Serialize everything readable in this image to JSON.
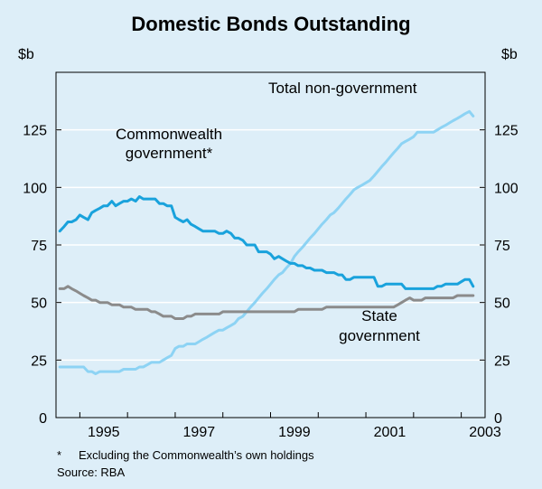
{
  "chart_data": {
    "type": "line",
    "title": "Domestic Bonds Outstanding",
    "ylabel_left": "$b",
    "ylabel_right": "$b",
    "ylim": [
      0,
      150
    ],
    "yticks": [
      0,
      25,
      50,
      75,
      100,
      125
    ],
    "xlim": [
      1994.5,
      2003.5
    ],
    "xticks": [
      "1995",
      "1997",
      "1999",
      "2001",
      "2003"
    ],
    "xtick_values": [
      1995,
      1997,
      1999,
      2001,
      2003
    ],
    "footnote_marker": "*",
    "footnote": "Excluding the Commonwealth’s own holdings",
    "source": "Source: RBA",
    "series": [
      {
        "name": "Commonwealth government*",
        "label_lines": [
          "Commonwealth",
          "government*"
        ],
        "color": "#19a2dc",
        "x": [
          1994.58,
          1994.67,
          1994.75,
          1994.83,
          1994.92,
          1995.0,
          1995.08,
          1995.17,
          1995.25,
          1995.33,
          1995.42,
          1995.5,
          1995.58,
          1995.67,
          1995.75,
          1995.83,
          1995.92,
          1996.0,
          1996.08,
          1996.17,
          1996.25,
          1996.33,
          1996.42,
          1996.5,
          1996.58,
          1996.67,
          1996.75,
          1996.83,
          1996.92,
          1997.0,
          1997.08,
          1997.17,
          1997.25,
          1997.33,
          1997.42,
          1997.5,
          1997.58,
          1997.67,
          1997.75,
          1997.83,
          1997.92,
          1998.0,
          1998.08,
          1998.17,
          1998.25,
          1998.33,
          1998.42,
          1998.5,
          1998.58,
          1998.67,
          1998.75,
          1998.83,
          1998.92,
          1999.0,
          1999.08,
          1999.17,
          1999.25,
          1999.33,
          1999.42,
          1999.5,
          1999.58,
          1999.67,
          1999.75,
          1999.83,
          1999.92,
          2000.0,
          2000.08,
          2000.17,
          2000.25,
          2000.33,
          2000.42,
          2000.5,
          2000.58,
          2000.67,
          2000.75,
          2000.83,
          2000.92,
          2001.0,
          2001.08,
          2001.17,
          2001.25,
          2001.33,
          2001.42,
          2001.5,
          2001.58,
          2001.67,
          2001.75,
          2001.83,
          2001.92,
          2002.0,
          2002.08,
          2002.17,
          2002.25,
          2002.33,
          2002.42,
          2002.5,
          2002.58,
          2002.67,
          2002.75,
          2002.83,
          2002.92,
          2003.0,
          2003.08,
          2003.17,
          2003.25
        ],
        "values": [
          81,
          83,
          85,
          85,
          86,
          88,
          87,
          86,
          89,
          90,
          91,
          92,
          92,
          94,
          92,
          93,
          94,
          94,
          95,
          94,
          96,
          95,
          95,
          95,
          95,
          93,
          93,
          92,
          92,
          87,
          86,
          85,
          86,
          84,
          83,
          82,
          81,
          81,
          81,
          81,
          80,
          80,
          81,
          80,
          78,
          78,
          77,
          75,
          75,
          75,
          72,
          72,
          72,
          71,
          69,
          70,
          69,
          68,
          67,
          67,
          66,
          66,
          65,
          65,
          64,
          64,
          64,
          63,
          63,
          63,
          62,
          62,
          60,
          60,
          61,
          61,
          61,
          61,
          61,
          61,
          57,
          57,
          58,
          58,
          58,
          58,
          58,
          56,
          56,
          56,
          56,
          56,
          56,
          56,
          56,
          57,
          57,
          58,
          58,
          58,
          58,
          59,
          60,
          60,
          57
        ]
      },
      {
        "name": "Total non-government",
        "label_lines": [
          "Total non-government"
        ],
        "color": "#8dd3f4",
        "x": [
          1994.58,
          1994.67,
          1994.75,
          1994.83,
          1994.92,
          1995.0,
          1995.08,
          1995.17,
          1995.25,
          1995.33,
          1995.42,
          1995.5,
          1995.58,
          1995.67,
          1995.75,
          1995.83,
          1995.92,
          1996.0,
          1996.08,
          1996.17,
          1996.25,
          1996.33,
          1996.42,
          1996.5,
          1996.58,
          1996.67,
          1996.75,
          1996.83,
          1996.92,
          1997.0,
          1997.08,
          1997.17,
          1997.25,
          1997.33,
          1997.42,
          1997.5,
          1997.58,
          1997.67,
          1997.75,
          1997.83,
          1997.92,
          1998.0,
          1998.08,
          1998.17,
          1998.25,
          1998.33,
          1998.42,
          1998.5,
          1998.58,
          1998.67,
          1998.75,
          1998.83,
          1998.92,
          1999.0,
          1999.08,
          1999.17,
          1999.25,
          1999.33,
          1999.42,
          1999.5,
          1999.58,
          1999.67,
          1999.75,
          1999.83,
          1999.92,
          2000.0,
          2000.08,
          2000.17,
          2000.25,
          2000.33,
          2000.42,
          2000.5,
          2000.58,
          2000.67,
          2000.75,
          2000.83,
          2000.92,
          2001.0,
          2001.08,
          2001.17,
          2001.25,
          2001.33,
          2001.42,
          2001.5,
          2001.58,
          2001.67,
          2001.75,
          2001.83,
          2001.92,
          2002.0,
          2002.08,
          2002.17,
          2002.25,
          2002.33,
          2002.42,
          2002.5,
          2002.58,
          2002.67,
          2002.75,
          2002.83,
          2002.92,
          2003.0,
          2003.08,
          2003.17,
          2003.25
        ],
        "values": [
          22,
          22,
          22,
          22,
          22,
          22,
          22,
          20,
          20,
          19,
          20,
          20,
          20,
          20,
          20,
          20,
          21,
          21,
          21,
          21,
          22,
          22,
          23,
          24,
          24,
          24,
          25,
          26,
          27,
          30,
          31,
          31,
          32,
          32,
          32,
          33,
          34,
          35,
          36,
          37,
          38,
          38,
          39,
          40,
          41,
          43,
          44,
          46,
          48,
          50,
          52,
          54,
          56,
          58,
          60,
          62,
          63,
          65,
          67,
          70,
          72,
          74,
          76,
          78,
          80,
          82,
          84,
          86,
          88,
          89,
          91,
          93,
          95,
          97,
          99,
          100,
          101,
          102,
          103,
          105,
          107,
          109,
          111,
          113,
          115,
          117,
          119,
          120,
          121,
          122,
          124,
          124,
          124,
          124,
          124,
          125,
          126,
          127,
          128,
          129,
          130,
          131,
          132,
          133,
          131
        ]
      },
      {
        "name": "State government",
        "label_lines": [
          "State",
          "government"
        ],
        "color": "#8b8b8b",
        "x": [
          1994.58,
          1994.67,
          1994.75,
          1994.83,
          1994.92,
          1995.0,
          1995.08,
          1995.17,
          1995.25,
          1995.33,
          1995.42,
          1995.5,
          1995.58,
          1995.67,
          1995.75,
          1995.83,
          1995.92,
          1996.0,
          1996.08,
          1996.17,
          1996.25,
          1996.33,
          1996.42,
          1996.5,
          1996.58,
          1996.67,
          1996.75,
          1996.83,
          1996.92,
          1997.0,
          1997.08,
          1997.17,
          1997.25,
          1997.33,
          1997.42,
          1997.5,
          1997.58,
          1997.67,
          1997.75,
          1997.83,
          1997.92,
          1998.0,
          1998.08,
          1998.17,
          1998.25,
          1998.33,
          1998.42,
          1998.5,
          1998.58,
          1998.67,
          1998.75,
          1998.83,
          1998.92,
          1999.0,
          1999.08,
          1999.17,
          1999.25,
          1999.33,
          1999.42,
          1999.5,
          1999.58,
          1999.67,
          1999.75,
          1999.83,
          1999.92,
          2000.0,
          2000.08,
          2000.17,
          2000.25,
          2000.33,
          2000.42,
          2000.5,
          2000.58,
          2000.67,
          2000.75,
          2000.83,
          2000.92,
          2001.0,
          2001.08,
          2001.17,
          2001.25,
          2001.33,
          2001.42,
          2001.5,
          2001.58,
          2001.67,
          2001.75,
          2001.83,
          2001.92,
          2002.0,
          2002.08,
          2002.17,
          2002.25,
          2002.33,
          2002.42,
          2002.5,
          2002.58,
          2002.67,
          2002.75,
          2002.83,
          2002.92,
          2003.0,
          2003.08,
          2003.17,
          2003.25
        ],
        "values": [
          56,
          56,
          57,
          56,
          55,
          54,
          53,
          52,
          51,
          51,
          50,
          50,
          50,
          49,
          49,
          49,
          48,
          48,
          48,
          47,
          47,
          47,
          47,
          46,
          46,
          45,
          44,
          44,
          44,
          43,
          43,
          43,
          44,
          44,
          45,
          45,
          45,
          45,
          45,
          45,
          45,
          46,
          46,
          46,
          46,
          46,
          46,
          46,
          46,
          46,
          46,
          46,
          46,
          46,
          46,
          46,
          46,
          46,
          46,
          46,
          47,
          47,
          47,
          47,
          47,
          47,
          47,
          48,
          48,
          48,
          48,
          48,
          48,
          48,
          48,
          48,
          48,
          48,
          48,
          48,
          48,
          48,
          48,
          48,
          48,
          49,
          50,
          51,
          52,
          51,
          51,
          51,
          52,
          52,
          52,
          52,
          52,
          52,
          52,
          52,
          53,
          53,
          53,
          53,
          53
        ]
      }
    ]
  }
}
